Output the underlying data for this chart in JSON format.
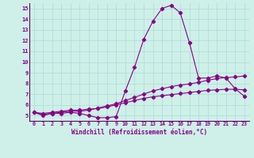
{
  "xlabel": "Windchill (Refroidissement éolien,°C)",
  "bg_color": "#cef0e8",
  "grid_color": "#aaddd3",
  "line_color": "#880088",
  "axis_color": "#660066",
  "x": [
    0,
    1,
    2,
    3,
    4,
    5,
    6,
    7,
    8,
    9,
    10,
    11,
    12,
    13,
    14,
    15,
    16,
    17,
    18,
    19,
    20,
    21,
    22,
    23
  ],
  "series1": [
    5.3,
    5.0,
    5.2,
    5.2,
    5.3,
    5.2,
    5.0,
    4.8,
    4.8,
    4.9,
    7.3,
    9.5,
    12.1,
    13.8,
    15.0,
    15.3,
    14.6,
    11.8,
    8.5,
    8.5,
    8.7,
    8.5,
    7.5,
    6.8
  ],
  "series2": [
    5.3,
    5.1,
    5.2,
    5.3,
    5.4,
    5.4,
    5.5,
    5.7,
    5.9,
    6.1,
    6.4,
    6.7,
    7.0,
    7.3,
    7.5,
    7.7,
    7.85,
    7.95,
    8.1,
    8.3,
    8.45,
    8.55,
    8.6,
    8.7
  ],
  "series3": [
    5.3,
    5.2,
    5.3,
    5.4,
    5.5,
    5.5,
    5.6,
    5.65,
    5.8,
    6.0,
    6.2,
    6.4,
    6.6,
    6.75,
    6.85,
    6.95,
    7.05,
    7.15,
    7.25,
    7.35,
    7.4,
    7.45,
    7.45,
    7.4
  ],
  "ylim": [
    4.5,
    15.5
  ],
  "xlim": [
    -0.5,
    23.5
  ],
  "yticks": [
    5,
    6,
    7,
    8,
    9,
    10,
    11,
    12,
    13,
    14,
    15
  ],
  "xticks": [
    0,
    1,
    2,
    3,
    4,
    5,
    6,
    7,
    8,
    9,
    10,
    11,
    12,
    13,
    14,
    15,
    16,
    17,
    18,
    19,
    20,
    21,
    22,
    23
  ]
}
